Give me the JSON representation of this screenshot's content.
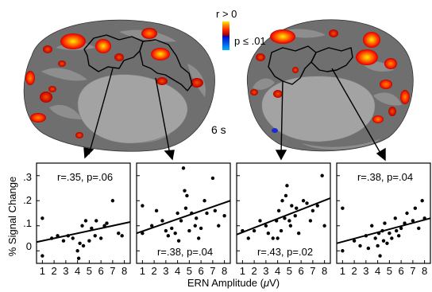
{
  "brain": {
    "legend_r": "r > 0",
    "legend_p": "p ≤ .01",
    "time_label": "6 s",
    "colors": {
      "positive": [
        "#8b0000",
        "#ff2200",
        "#ff7a00",
        "#ffe600"
      ],
      "negative": [
        "#0000cc",
        "#00a0ff"
      ]
    }
  },
  "axes": {
    "ylabel": "% Signal Change",
    "xlabel": "ERN Amplitude (",
    "xlabel_unit": "μ",
    "xlabel_end": "V)",
    "yticks": [
      {
        "value": 0.3,
        "label": ".3"
      },
      {
        "value": 0.2,
        "label": ".2"
      },
      {
        "value": 0.1,
        "label": ".1"
      },
      {
        "value": 0.0,
        "label": "0"
      }
    ],
    "xticks": [
      1,
      2,
      3,
      4,
      5,
      6,
      7,
      8
    ]
  },
  "chart_data": [
    {
      "type": "scatter",
      "annotation": "r=.35, p=.06",
      "xlim": [
        0.5,
        8.5
      ],
      "ylim": [
        -0.05,
        0.35
      ],
      "fit": [
        [
          0.5,
          0.035
        ],
        [
          8.5,
          0.115
        ]
      ],
      "points": [
        [
          1.0,
          0.13
        ],
        [
          1.0,
          -0.02
        ],
        [
          1.8,
          0.05
        ],
        [
          2.3,
          0.06
        ],
        [
          2.8,
          0.04
        ],
        [
          3.2,
          0.06
        ],
        [
          3.6,
          0.05
        ],
        [
          4.0,
          0.0
        ],
        [
          4.1,
          -0.03
        ],
        [
          4.2,
          0.03
        ],
        [
          4.4,
          0.1
        ],
        [
          4.5,
          0.02
        ],
        [
          4.7,
          0.12
        ],
        [
          5.0,
          0.04
        ],
        [
          5.2,
          0.09
        ],
        [
          5.5,
          0.06
        ],
        [
          5.6,
          0.12
        ],
        [
          6.0,
          0.05
        ],
        [
          6.3,
          0.1
        ],
        [
          6.5,
          0.11
        ],
        [
          7.0,
          0.2
        ],
        [
          7.5,
          0.07
        ],
        [
          7.8,
          0.06
        ]
      ]
    },
    {
      "type": "scatter",
      "annotation": "r=.38, p=.04",
      "xlim": [
        0.5,
        8.5
      ],
      "ylim": [
        -0.05,
        0.35
      ],
      "fit": [
        [
          0.5,
          0.07
        ],
        [
          8.5,
          0.2
        ]
      ],
      "points": [
        [
          1.0,
          0.18
        ],
        [
          1.0,
          0.07
        ],
        [
          1.8,
          0.1
        ],
        [
          2.2,
          0.16
        ],
        [
          2.7,
          0.12
        ],
        [
          3.0,
          0.08
        ],
        [
          3.2,
          0.06
        ],
        [
          3.5,
          0.09
        ],
        [
          3.8,
          0.07
        ],
        [
          4.0,
          0.15
        ],
        [
          4.1,
          0.04
        ],
        [
          4.3,
          0.12
        ],
        [
          4.5,
          0.33
        ],
        [
          4.6,
          0.24
        ],
        [
          4.7,
          0.17
        ],
        [
          4.8,
          0.22
        ],
        [
          5.0,
          0.08
        ],
        [
          5.2,
          0.15
        ],
        [
          5.5,
          0.1
        ],
        [
          5.6,
          0.13
        ],
        [
          5.8,
          0.05
        ],
        [
          6.0,
          0.09
        ],
        [
          6.3,
          0.2
        ],
        [
          6.5,
          0.15
        ],
        [
          7.0,
          0.29
        ],
        [
          7.2,
          0.16
        ],
        [
          7.5,
          0.1
        ],
        [
          8.0,
          0.14
        ]
      ]
    },
    {
      "type": "scatter",
      "annotation": "r=.43, p=.02",
      "xlim": [
        0.5,
        8.5
      ],
      "ylim": [
        -0.05,
        0.35
      ],
      "fit": [
        [
          0.5,
          0.065
        ],
        [
          8.5,
          0.21
        ]
      ],
      "points": [
        [
          1.0,
          0.08
        ],
        [
          1.5,
          0.05
        ],
        [
          2.0,
          0.08
        ],
        [
          2.5,
          0.12
        ],
        [
          3.0,
          0.1
        ],
        [
          3.2,
          0.07
        ],
        [
          3.6,
          0.05
        ],
        [
          3.9,
          0.12
        ],
        [
          4.0,
          0.05
        ],
        [
          4.1,
          0.16
        ],
        [
          4.3,
          0.08
        ],
        [
          4.4,
          0.2
        ],
        [
          4.6,
          0.13
        ],
        [
          4.7,
          0.22
        ],
        [
          4.8,
          0.26
        ],
        [
          5.0,
          0.12
        ],
        [
          5.1,
          0.1
        ],
        [
          5.2,
          0.18
        ],
        [
          5.5,
          0.14
        ],
        [
          5.6,
          0.17
        ],
        [
          5.8,
          0.07
        ],
        [
          6.2,
          0.2
        ],
        [
          6.5,
          0.19
        ],
        [
          6.8,
          0.12
        ],
        [
          7.0,
          0.16
        ],
        [
          7.4,
          0.18
        ],
        [
          7.8,
          0.3
        ],
        [
          8.0,
          0.1
        ]
      ]
    },
    {
      "type": "scatter",
      "annotation": "r=.38, p=.04",
      "xlim": [
        0.5,
        8.5
      ],
      "ylim": [
        -0.05,
        0.35
      ],
      "fit": [
        [
          0.5,
          0.03
        ],
        [
          8.5,
          0.13
        ]
      ],
      "points": [
        [
          1.0,
          0.17
        ],
        [
          1.0,
          0.0
        ],
        [
          2.0,
          0.04
        ],
        [
          2.5,
          0.02
        ],
        [
          3.0,
          0.06
        ],
        [
          3.2,
          0.01
        ],
        [
          3.5,
          0.1
        ],
        [
          3.8,
          0.05
        ],
        [
          4.0,
          0.02
        ],
        [
          4.1,
          0.07
        ],
        [
          4.2,
          -0.02
        ],
        [
          4.4,
          0.08
        ],
        [
          4.5,
          0.04
        ],
        [
          4.6,
          0.11
        ],
        [
          4.8,
          0.03
        ],
        [
          5.0,
          0.07
        ],
        [
          5.2,
          0.05
        ],
        [
          5.5,
          0.13
        ],
        [
          5.6,
          0.08
        ],
        [
          5.8,
          0.06
        ],
        [
          6.0,
          0.09
        ],
        [
          6.3,
          0.11
        ],
        [
          6.5,
          0.15
        ],
        [
          7.0,
          0.12
        ],
        [
          7.2,
          0.17
        ],
        [
          7.5,
          0.09
        ],
        [
          7.8,
          0.2
        ],
        [
          8.0,
          0.13
        ]
      ]
    }
  ]
}
